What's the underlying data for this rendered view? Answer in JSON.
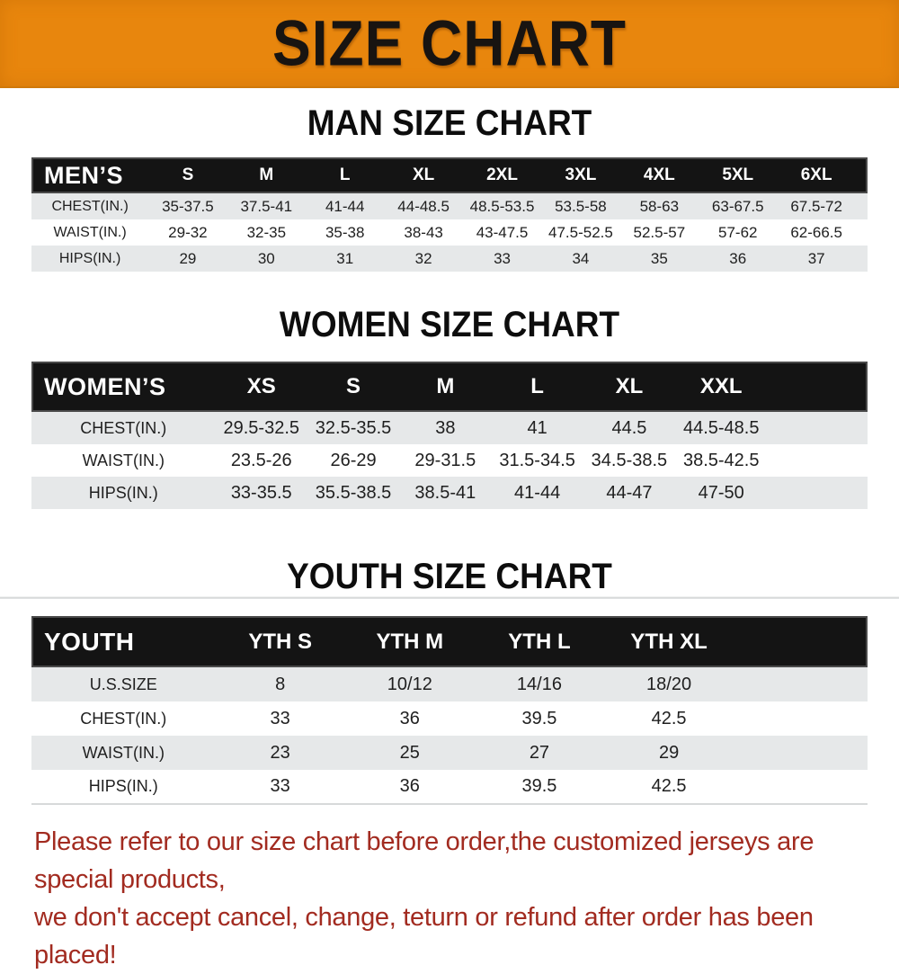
{
  "banner": {
    "title": "SIZE CHART"
  },
  "sections": {
    "men": {
      "heading": "MAN SIZE CHART",
      "header": [
        "MEN’S",
        "S",
        "M",
        "L",
        "XL",
        "2XL",
        "3XL",
        "4XL",
        "5XL",
        "6XL"
      ],
      "rows": [
        {
          "label": "CHEST(IN.)",
          "values": [
            "35-37.5",
            "37.5-41",
            "41-44",
            "44-48.5",
            "48.5-53.5",
            "53.5-58",
            "58-63",
            "63-67.5",
            "67.5-72"
          ]
        },
        {
          "label": "WAIST(IN.)",
          "values": [
            "29-32",
            "32-35",
            "35-38",
            "38-43",
            "43-47.5",
            "47.5-52.5",
            "52.5-57",
            "57-62",
            "62-66.5"
          ]
        },
        {
          "label": "HIPS(IN.)",
          "values": [
            "29",
            "30",
            "31",
            "32",
            "33",
            "34",
            "35",
            "36",
            "37"
          ]
        }
      ]
    },
    "women": {
      "heading": "WOMEN SIZE CHART",
      "header": [
        "WOMEN’S",
        "XS",
        "S",
        "M",
        "L",
        "XL",
        "XXL"
      ],
      "rows": [
        {
          "label": "CHEST(IN.)",
          "values": [
            "29.5-32.5",
            "32.5-35.5",
            "38",
            "41",
            "44.5",
            "44.5-48.5"
          ]
        },
        {
          "label": "WAIST(IN.)",
          "values": [
            "23.5-26",
            "26-29",
            "29-31.5",
            "31.5-34.5",
            "34.5-38.5",
            "38.5-42.5"
          ]
        },
        {
          "label": "HIPS(IN.)",
          "values": [
            "33-35.5",
            "35.5-38.5",
            "38.5-41",
            "41-44",
            "44-47",
            "47-50"
          ]
        }
      ]
    },
    "youth": {
      "heading": "YOUTH SIZE CHART",
      "header": [
        "YOUTH",
        "YTH S",
        "YTH M",
        "YTH L",
        "YTH XL"
      ],
      "rows": [
        {
          "label": "U.S.SIZE",
          "values": [
            "8",
            "10/12",
            "14/16",
            "18/20"
          ]
        },
        {
          "label": "CHEST(IN.)",
          "values": [
            "33",
            "36",
            "39.5",
            "42.5"
          ]
        },
        {
          "label": "WAIST(IN.)",
          "values": [
            "23",
            "25",
            "27",
            "29"
          ]
        },
        {
          "label": "HIPS(IN.)",
          "values": [
            "33",
            "36",
            "39.5",
            "42.5"
          ]
        }
      ]
    }
  },
  "footer": {
    "line1": "Please refer to our size chart before order,the customized jerseys are special products,",
    "line2": "we don't accept cancel, change, teturn or refund after order has been placed!"
  },
  "colors": {
    "banner_orange": "#E8860D",
    "header_black": "#141414",
    "row_gray": "#E6E8E9",
    "notice_red": "#A22B20"
  }
}
